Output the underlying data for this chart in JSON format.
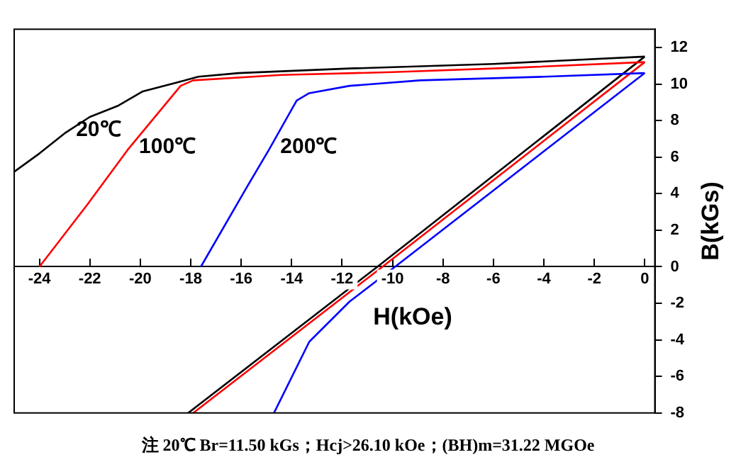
{
  "chart_data": {
    "type": "line",
    "xlabel": "H(kOe)",
    "ylabel": "B(kGs)",
    "xlim": [
      -25,
      0.4
    ],
    "ylim": [
      -8,
      13
    ],
    "xticks": [
      -24,
      -22,
      -20,
      -18,
      -16,
      -14,
      -12,
      -10,
      -8,
      -6,
      -4,
      -2,
      0
    ],
    "yticks": [
      -8,
      -6,
      -4,
      -2,
      0,
      2,
      4,
      6,
      8,
      10,
      12
    ],
    "grid": false,
    "legend": false,
    "marker": "none",
    "line_style": "solid",
    "series": [
      {
        "name": "20℃",
        "color": "#000000",
        "x": [
          -25,
          -24,
          -23,
          -22,
          -20.9,
          -19.9,
          -18.5,
          -17.7,
          -16.1,
          -11.7,
          -6,
          0
        ],
        "values": [
          5.2,
          6.2,
          7.3,
          8.2,
          8.8,
          9.6,
          10.1,
          10.4,
          10.6,
          10.85,
          11.1,
          11.5
        ]
      },
      {
        "name": "100℃",
        "color": "#ff0000",
        "x": [
          -24,
          -22.1,
          -20.5,
          -18.4,
          -17.9,
          -14.4,
          -10,
          -5,
          0
        ],
        "values": [
          0,
          3.4,
          6.4,
          9.9,
          10.2,
          10.5,
          10.65,
          10.9,
          11.2
        ]
      },
      {
        "name": "200℃",
        "color": "#0000ff",
        "x": [
          -17.6,
          -15.8,
          -14.9,
          -13.8,
          -13.3,
          -11.7,
          -8.9,
          -4,
          0
        ],
        "values": [
          0,
          4.3,
          6.4,
          9.1,
          9.5,
          9.9,
          10.2,
          10.4,
          10.6
        ]
      },
      {
        "color": "#000000",
        "x": [
          -18.1,
          -10.6,
          0
        ],
        "values": [
          -8,
          0,
          11.5
        ]
      },
      {
        "color": "#ff0000",
        "x": [
          -17.9,
          -10.4,
          0
        ],
        "values": [
          -8,
          0,
          11.2
        ]
      },
      {
        "color": "#0000ff",
        "x": [
          -14.7,
          -13.3,
          -11.7,
          -9.9,
          0
        ],
        "values": [
          -8,
          -4.1,
          -1.9,
          0,
          10.6
        ]
      }
    ],
    "annotations": [
      "注 20℃ Br=11.50 kGs；Hcj>26.10 kOe；(BH)m=31.22 MGOe"
    ]
  }
}
